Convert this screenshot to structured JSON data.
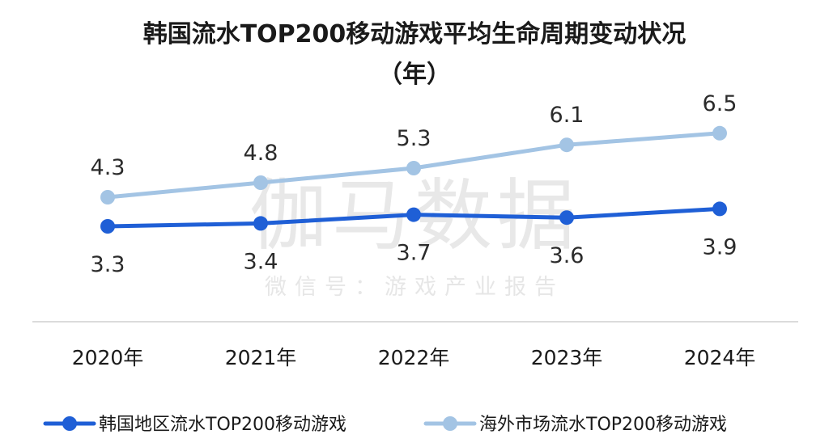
{
  "chart_data": {
    "type": "line",
    "title_lines": [
      "韩国流水TOP200移动游戏平均生命周期变动状况",
      "（年）"
    ],
    "categories": [
      "2020年",
      "2021年",
      "2022年",
      "2023年",
      "2024年"
    ],
    "series": [
      {
        "name": "韩国地区流水TOP200移动游戏",
        "values": [
          3.3,
          3.4,
          3.7,
          3.6,
          3.9
        ],
        "labels": [
          "3.3",
          "3.4",
          "3.7",
          "3.6",
          "3.9"
        ],
        "color": "#1f5fd6",
        "label_position": "below"
      },
      {
        "name": "海外市场流水TOP200移动游戏",
        "values": [
          4.3,
          4.8,
          5.3,
          6.1,
          6.5
        ],
        "labels": [
          "4.3",
          "4.8",
          "5.3",
          "6.1",
          "6.5"
        ],
        "color": "#a3c4e4",
        "label_position": "above"
      }
    ],
    "legend_position": "bottom",
    "grid": false,
    "watermark": {
      "main": "伽马数据",
      "sub": "微信号：游戏产业报告"
    }
  }
}
